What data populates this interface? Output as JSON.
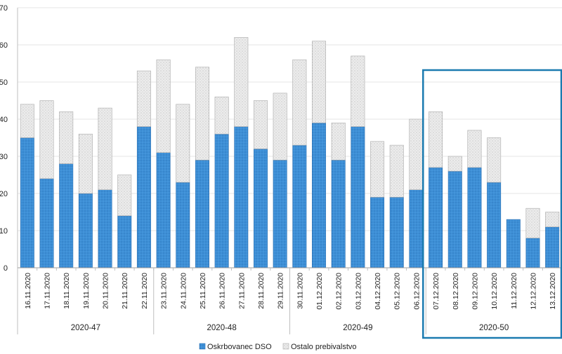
{
  "chart_data": {
    "type": "bar",
    "stacked": true,
    "categories": [
      "16.11.2020",
      "17.11.2020",
      "18.11.2020",
      "19.11.2020",
      "20.11.2020",
      "21.11.2020",
      "22.11.2020",
      "23.11.2020",
      "24.11.2020",
      "25.11.2020",
      "26.11.2020",
      "27.11.2020",
      "28.11.2020",
      "29.11.2020",
      "30.11.2020",
      "01.12.2020",
      "02.12.2020",
      "03.12.2020",
      "04.12.2020",
      "05.12.2020",
      "06.12.2020",
      "07.12.2020",
      "08.12.2020",
      "09.12.2020",
      "10.12.2020",
      "11.12.2020",
      "12.12.2020",
      "13.12.2020"
    ],
    "groups": [
      {
        "label": "2020-47",
        "start": 0,
        "end": 6
      },
      {
        "label": "2020-48",
        "start": 7,
        "end": 13
      },
      {
        "label": "2020-49",
        "start": 14,
        "end": 20
      },
      {
        "label": "2020-50",
        "start": 21,
        "end": 27
      }
    ],
    "series": [
      {
        "name": "Oskrbovanec DSO",
        "color": "#3d8fd6",
        "values": [
          35,
          24,
          28,
          20,
          21,
          14,
          38,
          31,
          23,
          29,
          36,
          38,
          32,
          29,
          33,
          39,
          29,
          38,
          19,
          19,
          21,
          27,
          26,
          27,
          23,
          13,
          8,
          11
        ]
      },
      {
        "name": "Ostalo prebivalstvo",
        "color": "#e4e4e4",
        "values": [
          9,
          21,
          14,
          16,
          22,
          11,
          15,
          25,
          21,
          25,
          10,
          24,
          13,
          18,
          23,
          22,
          10,
          19,
          15,
          14,
          19,
          15,
          4,
          10,
          12,
          0,
          8,
          4
        ]
      }
    ],
    "yticks": [
      "0",
      "10",
      "20",
      "30",
      "40",
      "50",
      "60",
      "70"
    ],
    "ylim": [
      0,
      70
    ],
    "grid": true,
    "legend": "bottom",
    "highlight": {
      "group": "2020-50",
      "color": "#1b7bb0"
    }
  }
}
